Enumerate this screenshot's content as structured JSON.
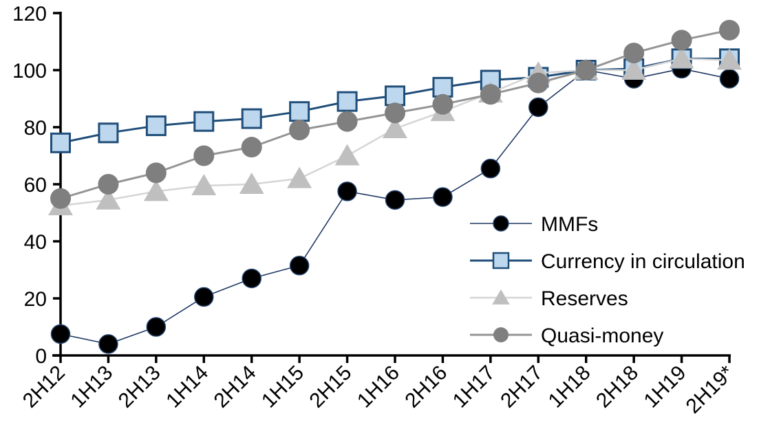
{
  "chart_data": {
    "type": "line",
    "title": "",
    "xlabel": "",
    "ylabel": "",
    "categories": [
      "2H12",
      "1H13",
      "2H13",
      "1H14",
      "2H14",
      "1H15",
      "2H15",
      "1H16",
      "2H16",
      "1H17",
      "2H17",
      "1H18",
      "2H18",
      "1H19",
      "2H19*"
    ],
    "series": [
      {
        "name": "MMFs",
        "marker": "circle",
        "marker_fill": "#000000",
        "marker_stroke": "#24436E",
        "marker_stroke_width": 1.5,
        "marker_size": 27,
        "line_color": "#1F3864",
        "line_width": 1.6,
        "values": [
          7.5,
          4,
          10,
          20.5,
          27,
          31.5,
          57.5,
          54.5,
          55.5,
          65.5,
          87,
          100,
          97,
          100.5,
          97
        ]
      },
      {
        "name": "Currency in circulation",
        "marker": "square",
        "marker_fill": "#BDD7EE",
        "marker_stroke": "#1F4E79",
        "marker_stroke_width": 3,
        "marker_size": 27,
        "line_color": "#1F4E79",
        "line_width": 3,
        "values": [
          74.5,
          78,
          80.5,
          82,
          83,
          85.5,
          89,
          91,
          94,
          96.5,
          97.5,
          100,
          100.5,
          104,
          104
        ]
      },
      {
        "name": "Reserves",
        "marker": "triangle",
        "marker_fill": "#BFBFBF",
        "marker_stroke": "none",
        "marker_stroke_width": 0,
        "marker_size": 31,
        "line_color": "#D5D5D5",
        "line_width": 2.5,
        "values": [
          52.5,
          54.5,
          57.5,
          59.5,
          60,
          62,
          70,
          79.5,
          85.5,
          92,
          99,
          100,
          100,
          104,
          103.5
        ]
      },
      {
        "name": "Quasi-money",
        "marker": "circle",
        "marker_fill": "#7F7F7F",
        "marker_stroke": "none",
        "marker_stroke_width": 0,
        "marker_size": 30,
        "line_color": "#949494",
        "line_width": 3,
        "values": [
          55,
          60,
          64,
          70,
          73,
          79,
          82,
          85,
          88,
          91.5,
          95.5,
          100,
          106,
          110.5,
          114
        ]
      }
    ],
    "ylim": [
      0,
      120
    ],
    "yticks": [
      0,
      20,
      40,
      60,
      80,
      100,
      120
    ],
    "grid": false,
    "legend_position": "inside-right",
    "axis_color": "#000000",
    "background": "#FFFFFF"
  }
}
